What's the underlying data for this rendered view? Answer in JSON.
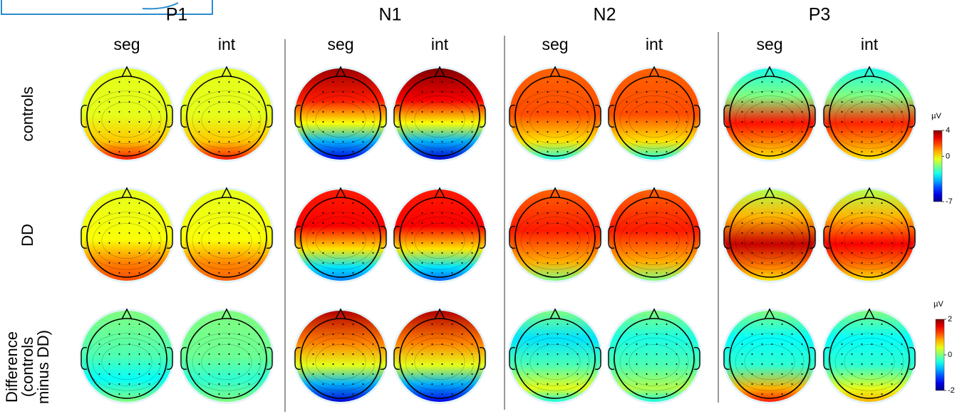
{
  "components": [
    {
      "title": "P1",
      "conditions": [
        "seg",
        "int"
      ]
    },
    {
      "title": "N1",
      "conditions": [
        "seg",
        "int"
      ]
    },
    {
      "title": "N2",
      "conditions": [
        "seg",
        "int"
      ]
    },
    {
      "title": "P3",
      "conditions": [
        "seg",
        "int"
      ]
    }
  ],
  "rows": [
    [
      "controls"
    ],
    [
      "DD"
    ],
    [
      "Difference",
      "(controls",
      "minus DD)"
    ]
  ],
  "colorbars": [
    {
      "unit": "µV",
      "range": [
        -7,
        4
      ],
      "ticks": [
        4,
        0,
        -7
      ]
    },
    {
      "unit": "µV",
      "range": [
        -2,
        2
      ],
      "ticks": [
        2,
        0,
        -2
      ]
    }
  ]
}
